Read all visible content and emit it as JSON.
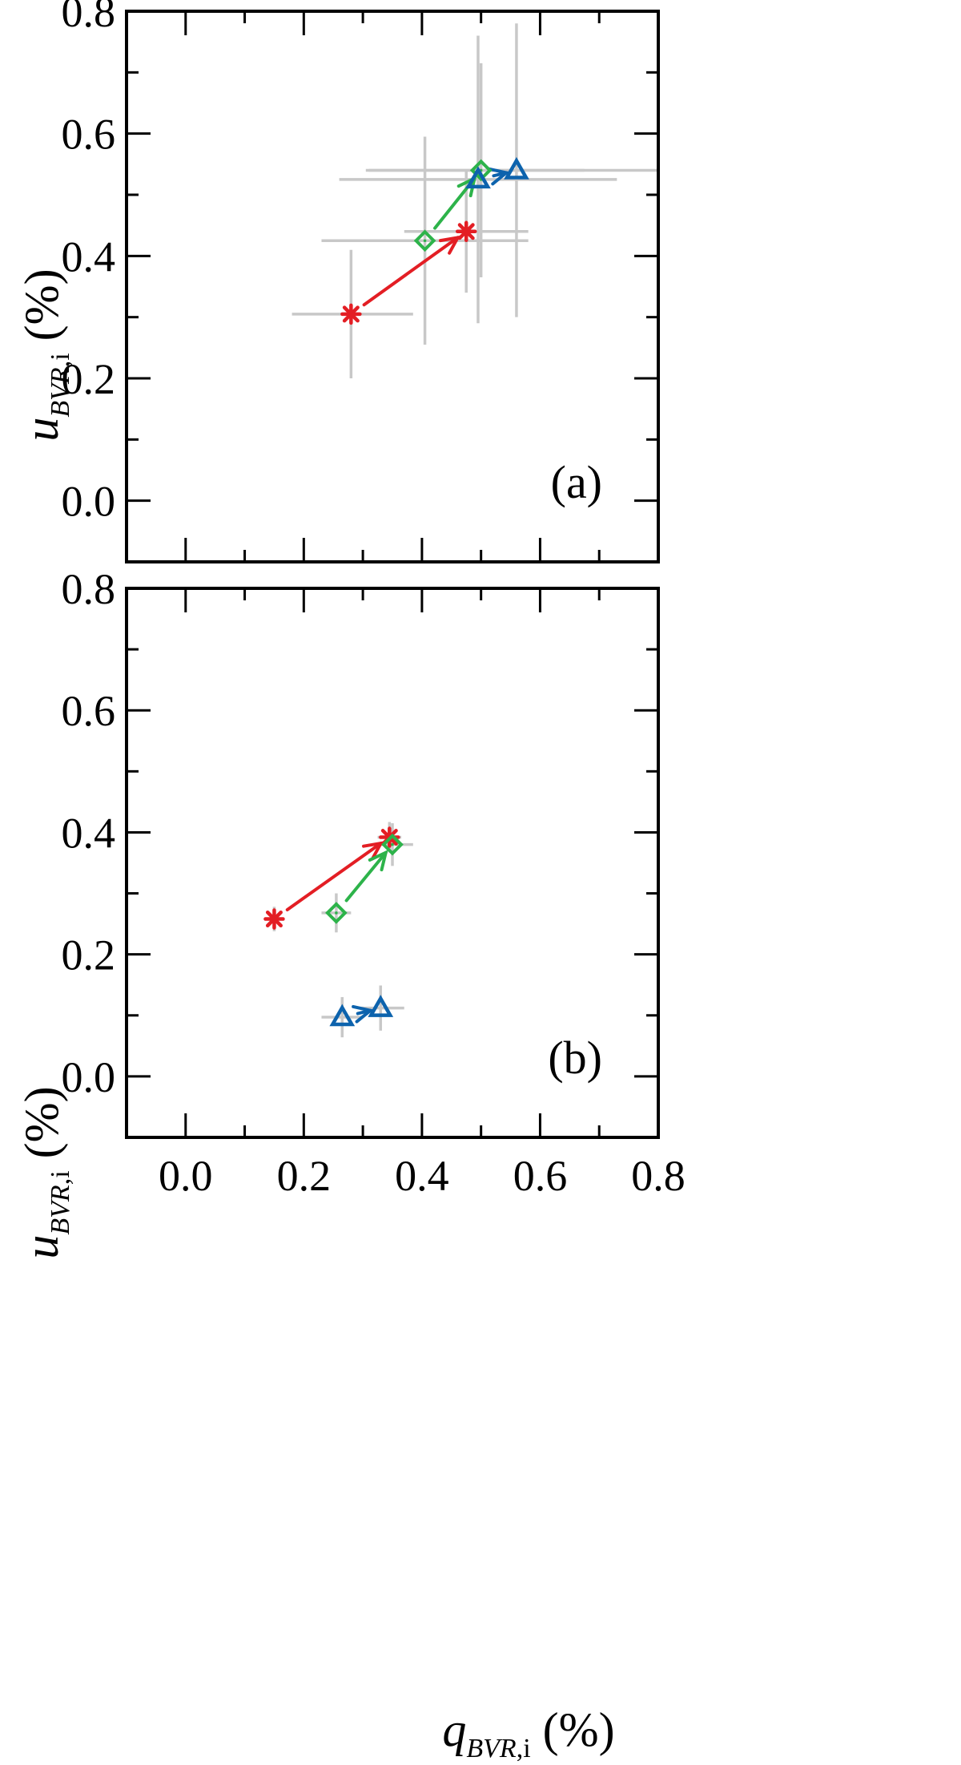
{
  "figure": {
    "x_axis": {
      "var": "q",
      "sub_italic": "BVR",
      "sub_roman": ",i",
      "unit": " (%)"
    },
    "y_axis": {
      "var": "u",
      "sub_italic": "BVR",
      "sub_roman": ",i",
      "unit": " (%)"
    }
  },
  "chart_data": [
    {
      "type": "scatter",
      "panel_label": "(a)",
      "xlim": [
        -0.1,
        0.8
      ],
      "ylim": [
        -0.1,
        0.8
      ],
      "x_ticks": [
        "0.0",
        "0.2",
        "0.4",
        "0.6",
        "0.8"
      ],
      "y_ticks": [
        "0.0",
        "0.2",
        "0.4",
        "0.6",
        "0.8"
      ],
      "show_x_tick_labels": false,
      "grid": false,
      "colors": {
        "red": "#e31e24",
        "green": "#2db34a",
        "blue": "#0d63ad",
        "errorbar": "#c8c8c8"
      },
      "series": [
        {
          "marker": "asterisk",
          "color": "red",
          "points": [
            {
              "x": 0.28,
              "y": 0.305,
              "xerr_lo": 0.1,
              "xerr_hi": 0.105,
              "yerr": 0.105
            },
            {
              "x": 0.475,
              "y": 0.44,
              "xerr_lo": 0.105,
              "xerr_hi": 0.105,
              "yerr": 0.1
            }
          ]
        },
        {
          "marker": "diamond",
          "color": "green",
          "points": [
            {
              "x": 0.405,
              "y": 0.425,
              "xerr_lo": 0.175,
              "xerr_hi": 0.175,
              "yerr": 0.17
            },
            {
              "x": 0.5,
              "y": 0.54,
              "xerr_lo": 0.195,
              "xerr_hi": 0.175,
              "yerr": 0.175
            }
          ]
        },
        {
          "marker": "triangle",
          "color": "blue",
          "points": [
            {
              "x": 0.495,
              "y": 0.525,
              "xerr_lo": 0.235,
              "xerr_hi": 0.235,
              "yerr": 0.235
            },
            {
              "x": 0.56,
              "y": 0.54,
              "xerr_lo": 0.25,
              "xerr_hi": 0.25,
              "yerr": 0.24
            }
          ]
        }
      ]
    },
    {
      "type": "scatter",
      "panel_label": "(b)",
      "xlim": [
        -0.1,
        0.8
      ],
      "ylim": [
        -0.1,
        0.8
      ],
      "x_ticks": [
        "0.0",
        "0.2",
        "0.4",
        "0.6",
        "0.8"
      ],
      "y_ticks": [
        "0.0",
        "0.2",
        "0.4",
        "0.6",
        "0.8"
      ],
      "show_x_tick_labels": true,
      "grid": false,
      "colors": {
        "red": "#e31e24",
        "green": "#2db34a",
        "blue": "#0d63ad",
        "errorbar": "#c8c8c8"
      },
      "series": [
        {
          "marker": "asterisk",
          "color": "red",
          "points": [
            {
              "x": 0.15,
              "y": 0.258,
              "xerr_lo": 0.015,
              "xerr_hi": 0.015,
              "yerr": 0.02
            },
            {
              "x": 0.345,
              "y": 0.392,
              "xerr_lo": 0.02,
              "xerr_hi": 0.02,
              "yerr": 0.025
            }
          ]
        },
        {
          "marker": "diamond",
          "color": "green",
          "points": [
            {
              "x": 0.255,
              "y": 0.268,
              "xerr_lo": 0.025,
              "xerr_hi": 0.025,
              "yerr": 0.032
            },
            {
              "x": 0.35,
              "y": 0.38,
              "xerr_lo": 0.03,
              "xerr_hi": 0.035,
              "yerr": 0.035
            }
          ]
        },
        {
          "marker": "triangle",
          "color": "blue",
          "points": [
            {
              "x": 0.265,
              "y": 0.097,
              "xerr_lo": 0.035,
              "xerr_hi": 0.035,
              "yerr": 0.033
            },
            {
              "x": 0.33,
              "y": 0.112,
              "xerr_lo": 0.035,
              "xerr_hi": 0.04,
              "yerr": 0.037
            }
          ]
        }
      ]
    }
  ]
}
